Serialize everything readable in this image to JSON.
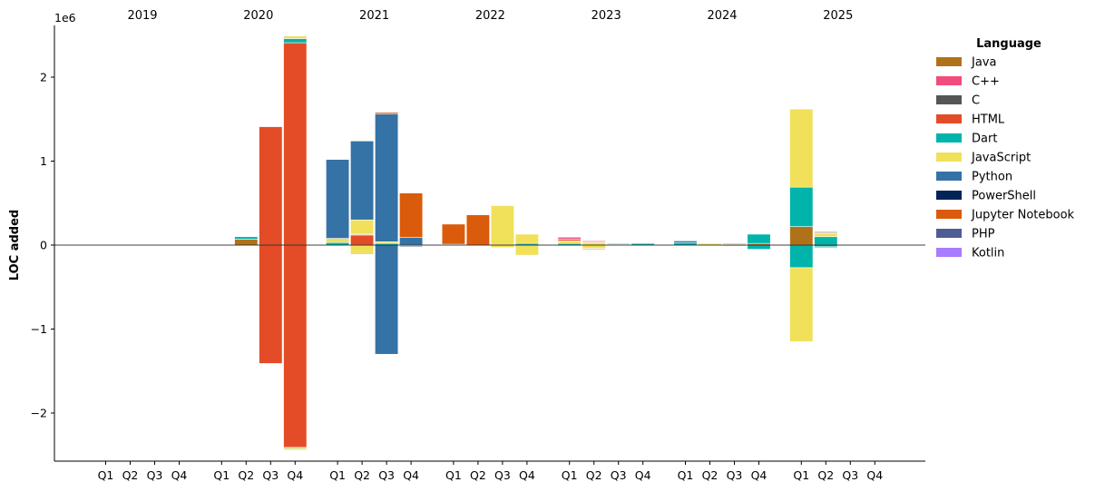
{
  "chart_data": {
    "type": "bar",
    "stacked": true,
    "ylabel": "LOC added",
    "y_scale_label": "1e6",
    "ylim": [
      -2580000,
      2630000
    ],
    "yticks": [
      -2000000,
      -1000000,
      0,
      1000000,
      2000000
    ],
    "ytick_labels": [
      "−2",
      "−1",
      "0",
      "1",
      "2"
    ],
    "years": [
      "2019",
      "2020",
      "2021",
      "2022",
      "2023",
      "2024",
      "2025"
    ],
    "quarters": [
      "Q1",
      "Q2",
      "Q3",
      "Q4"
    ],
    "legend_title": "Language",
    "legend_position": "top-right-outside",
    "series": [
      {
        "name": "Java",
        "color": "#B07219"
      },
      {
        "name": "C++",
        "color": "#F34B7D"
      },
      {
        "name": "C",
        "color": "#555555"
      },
      {
        "name": "HTML",
        "color": "#E34C26"
      },
      {
        "name": "Dart",
        "color": "#00B4AB"
      },
      {
        "name": "JavaScript",
        "color": "#F1E05A"
      },
      {
        "name": "Python",
        "color": "#3572A5"
      },
      {
        "name": "PowerShell",
        "color": "#012456"
      },
      {
        "name": "Jupyter Notebook",
        "color": "#DA5B0B"
      },
      {
        "name": "PHP",
        "color": "#4F5D95"
      },
      {
        "name": "Kotlin",
        "color": "#A97BFF"
      }
    ],
    "bars": [
      {
        "year": "2020",
        "quarter": "Q2",
        "pos": [
          {
            "s": "Java",
            "v": 70000
          },
          {
            "s": "Dart",
            "v": 30000
          }
        ],
        "neg": []
      },
      {
        "year": "2020",
        "quarter": "Q3",
        "pos": [
          {
            "s": "HTML",
            "v": 1410000
          }
        ],
        "neg": [
          {
            "s": "HTML",
            "v": -1410000
          }
        ]
      },
      {
        "year": "2020",
        "quarter": "Q4",
        "pos": [
          {
            "s": "HTML",
            "v": 2410000
          },
          {
            "s": "Dart",
            "v": 50000
          },
          {
            "s": "JavaScript",
            "v": 30000
          }
        ],
        "neg": [
          {
            "s": "HTML",
            "v": -2410000
          },
          {
            "s": "Dart",
            "v": -10000
          },
          {
            "s": "JavaScript",
            "v": -20000
          }
        ]
      },
      {
        "year": "2021",
        "quarter": "Q1",
        "pos": [
          {
            "s": "Dart",
            "v": 30000
          },
          {
            "s": "JavaScript",
            "v": 50000
          },
          {
            "s": "Python",
            "v": 940000
          }
        ],
        "neg": []
      },
      {
        "year": "2021",
        "quarter": "Q2",
        "pos": [
          {
            "s": "HTML",
            "v": 120000
          },
          {
            "s": "Java",
            "v": 10000
          },
          {
            "s": "JavaScript",
            "v": 170000
          },
          {
            "s": "Python",
            "v": 940000
          }
        ],
        "neg": [
          {
            "s": "JavaScript",
            "v": -100000
          },
          {
            "s": "Java",
            "v": -10000
          }
        ]
      },
      {
        "year": "2021",
        "quarter": "Q3",
        "pos": [
          {
            "s": "Dart",
            "v": 20000
          },
          {
            "s": "JavaScript",
            "v": 20000
          },
          {
            "s": "Python",
            "v": 1520000
          },
          {
            "s": "Jupyter Notebook",
            "v": 20000
          }
        ],
        "neg": [
          {
            "s": "Python",
            "v": -1300000
          }
        ]
      },
      {
        "year": "2021",
        "quarter": "Q4",
        "pos": [
          {
            "s": "Python",
            "v": 90000
          },
          {
            "s": "Jupyter Notebook",
            "v": 530000
          }
        ],
        "neg": [
          {
            "s": "Python",
            "v": -10000
          },
          {
            "s": "PowerShell",
            "v": -10000
          }
        ]
      },
      {
        "year": "2022",
        "quarter": "Q1",
        "pos": [
          {
            "s": "JavaScript",
            "v": 10000
          },
          {
            "s": "Jupyter Notebook",
            "v": 240000
          }
        ],
        "neg": []
      },
      {
        "year": "2022",
        "quarter": "Q2",
        "pos": [
          {
            "s": "Jupyter Notebook",
            "v": 360000
          }
        ],
        "neg": []
      },
      {
        "year": "2022",
        "quarter": "Q3",
        "pos": [
          {
            "s": "JavaScript",
            "v": 470000
          }
        ],
        "neg": [
          {
            "s": "JavaScript",
            "v": -30000
          }
        ]
      },
      {
        "year": "2022",
        "quarter": "Q4",
        "pos": [
          {
            "s": "Dart",
            "v": 20000
          },
          {
            "s": "JavaScript",
            "v": 110000
          }
        ],
        "neg": [
          {
            "s": "JavaScript",
            "v": -120000
          }
        ]
      },
      {
        "year": "2023",
        "quarter": "Q1",
        "pos": [
          {
            "s": "Dart",
            "v": 20000
          },
          {
            "s": "JavaScript",
            "v": 30000
          },
          {
            "s": "HTML",
            "v": 20000
          },
          {
            "s": "C++",
            "v": 20000
          },
          {
            "s": "PHP",
            "v": 10000
          }
        ],
        "neg": [
          {
            "s": "JavaScript",
            "v": -10000
          }
        ]
      },
      {
        "year": "2023",
        "quarter": "Q2",
        "pos": [
          {
            "s": "JavaScript",
            "v": 30000
          },
          {
            "s": "HTML",
            "v": 10000
          },
          {
            "s": "C++",
            "v": 10000
          }
        ],
        "neg": [
          {
            "s": "JavaScript",
            "v": -40000
          },
          {
            "s": "Java",
            "v": -10000
          }
        ]
      },
      {
        "year": "2023",
        "quarter": "Q3",
        "pos": [
          {
            "s": "Python",
            "v": 10000
          },
          {
            "s": "Dart",
            "v": 10000
          }
        ],
        "neg": [
          {
            "s": "Dart",
            "v": -5000
          }
        ]
      },
      {
        "year": "2023",
        "quarter": "Q4",
        "pos": [
          {
            "s": "Dart",
            "v": 20000
          }
        ],
        "neg": []
      },
      {
        "year": "2024",
        "quarter": "Q1",
        "pos": [
          {
            "s": "Dart",
            "v": 30000
          },
          {
            "s": "Python",
            "v": 20000
          }
        ],
        "neg": []
      },
      {
        "year": "2024",
        "quarter": "Q2",
        "pos": [
          {
            "s": "JavaScript",
            "v": 20000
          }
        ],
        "neg": []
      },
      {
        "year": "2024",
        "quarter": "Q3",
        "pos": [
          {
            "s": "JavaScript",
            "v": 10000
          },
          {
            "s": "Jupyter Notebook",
            "v": 10000
          }
        ],
        "neg": [
          {
            "s": "Jupyter Notebook",
            "v": -10000
          }
        ]
      },
      {
        "year": "2024",
        "quarter": "Q4",
        "pos": [
          {
            "s": "Java",
            "v": 20000
          },
          {
            "s": "Dart",
            "v": 110000
          }
        ],
        "neg": [
          {
            "s": "Dart",
            "v": -50000
          }
        ]
      },
      {
        "year": "2025",
        "quarter": "Q1",
        "pos": [
          {
            "s": "Java",
            "v": 220000
          },
          {
            "s": "Dart",
            "v": 470000
          },
          {
            "s": "JavaScript",
            "v": 930000
          }
        ],
        "neg": [
          {
            "s": "Dart",
            "v": -270000
          },
          {
            "s": "JavaScript",
            "v": -880000
          }
        ]
      },
      {
        "year": "2025",
        "quarter": "Q2",
        "pos": [
          {
            "s": "Dart",
            "v": 100000
          },
          {
            "s": "JavaScript",
            "v": 40000
          },
          {
            "s": "Java",
            "v": 10000
          },
          {
            "s": "Python",
            "v": 10000
          }
        ],
        "neg": [
          {
            "s": "Dart",
            "v": -20000
          },
          {
            "s": "C",
            "v": -10000
          }
        ]
      }
    ]
  }
}
